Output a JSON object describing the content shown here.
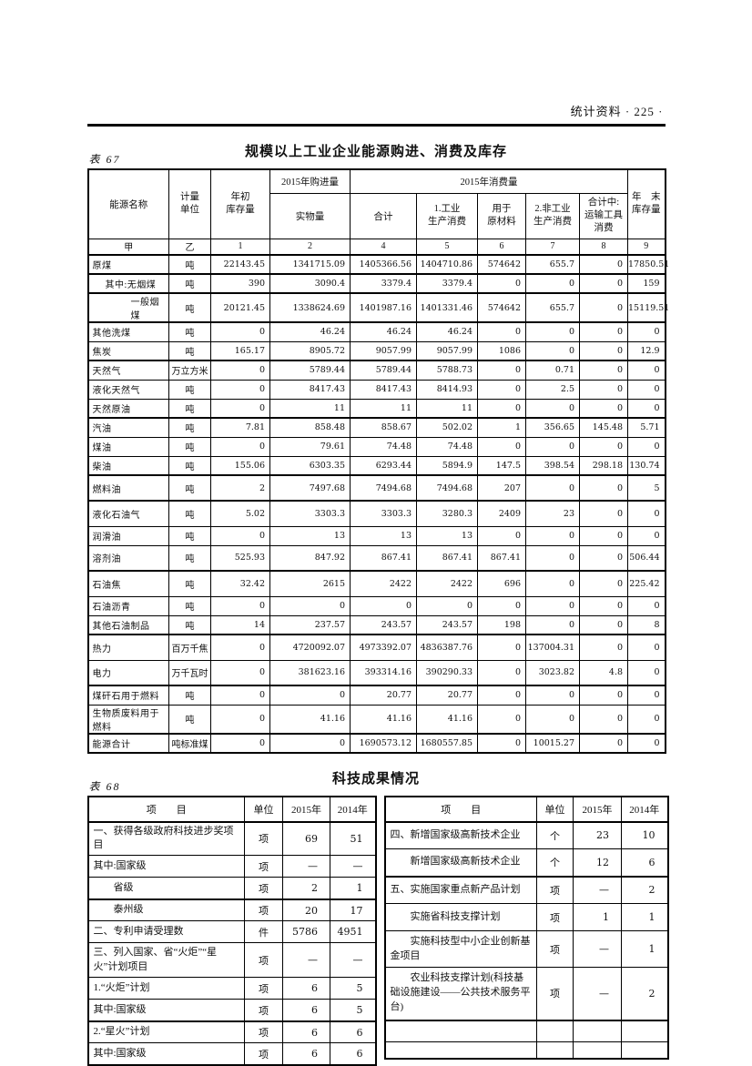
{
  "colors": {
    "ink": "#111111",
    "paper": "#ffffff"
  },
  "page": {
    "header_right": "统计资料 · 225 ·"
  },
  "table67": {
    "label": "表 67",
    "title": "规模以上工业企业能源购进、消费及库存",
    "columns": {
      "name": "能源名称",
      "unit": "计量\n单位",
      "begin_stock": "年初\n库存量",
      "purchase_group": "2015年购进量",
      "physical": "实物量",
      "consumption_group": "2015年消费量",
      "total": "合计",
      "industrial": "1.工业\n生产消费",
      "raw_material": "用于\n原材料",
      "non_industrial": "2.非工业\n生产消费",
      "transport": "合计中:\n运输工具\n消费",
      "end_stock": "年　末\n库存量"
    },
    "code_row": [
      "甲",
      "乙",
      "1",
      "2",
      "4",
      "5",
      "6",
      "7",
      "8",
      "9"
    ],
    "rows": [
      {
        "name": "原煤",
        "unit": "吨",
        "indent": 0,
        "separator_after": true,
        "tall": false,
        "values": [
          "22143.45",
          "1341715.09",
          "1405366.56",
          "1404710.86",
          "574642",
          "655.7",
          "0",
          "17850.51"
        ]
      },
      {
        "name": "其中:无烟煤",
        "unit": "吨",
        "indent": 1,
        "separator_after": true,
        "tall": false,
        "values": [
          "390",
          "3090.4",
          "3379.4",
          "3379.4",
          "0",
          "0",
          "0",
          "159"
        ]
      },
      {
        "name": "一般烟煤",
        "unit": "吨",
        "indent": 2,
        "separator_after": true,
        "tall": false,
        "values": [
          "20121.45",
          "1338624.69",
          "1401987.16",
          "1401331.46",
          "574642",
          "655.7",
          "0",
          "15119.51"
        ]
      },
      {
        "name": "其他洗煤",
        "unit": "吨",
        "indent": 0,
        "separator_after": false,
        "tall": false,
        "values": [
          "0",
          "46.24",
          "46.24",
          "46.24",
          "0",
          "0",
          "0",
          "0"
        ]
      },
      {
        "name": "焦炭",
        "unit": "吨",
        "indent": 0,
        "separator_after": true,
        "tall": false,
        "values": [
          "165.17",
          "8905.72",
          "9057.99",
          "9057.99",
          "1086",
          "0",
          "0",
          "12.9"
        ]
      },
      {
        "name": "天然气",
        "unit": "万立方米",
        "indent": 0,
        "separator_after": false,
        "tall": false,
        "values": [
          "0",
          "5789.44",
          "5789.44",
          "5788.73",
          "0",
          "0.71",
          "0",
          "0"
        ]
      },
      {
        "name": "液化天然气",
        "unit": "吨",
        "indent": 0,
        "separator_after": false,
        "tall": false,
        "values": [
          "0",
          "8417.43",
          "8417.43",
          "8414.93",
          "0",
          "2.5",
          "0",
          "0"
        ]
      },
      {
        "name": "天然原油",
        "unit": "吨",
        "indent": 0,
        "separator_after": true,
        "tall": false,
        "values": [
          "0",
          "11",
          "11",
          "11",
          "0",
          "0",
          "0",
          "0"
        ]
      },
      {
        "name": "汽油",
        "unit": "吨",
        "indent": 0,
        "separator_after": false,
        "tall": false,
        "values": [
          "7.81",
          "858.48",
          "858.67",
          "502.02",
          "1",
          "356.65",
          "145.48",
          "5.71"
        ]
      },
      {
        "name": "煤油",
        "unit": "吨",
        "indent": 0,
        "separator_after": false,
        "tall": false,
        "values": [
          "0",
          "79.61",
          "74.48",
          "74.48",
          "0",
          "0",
          "0",
          "0"
        ]
      },
      {
        "name": "柴油",
        "unit": "吨",
        "indent": 0,
        "separator_after": true,
        "tall": false,
        "values": [
          "155.06",
          "6303.35",
          "6293.44",
          "5894.9",
          "147.5",
          "398.54",
          "298.18",
          "130.74"
        ]
      },
      {
        "name": "燃料油",
        "unit": "吨",
        "indent": 0,
        "separator_after": true,
        "tall": true,
        "values": [
          "2",
          "7497.68",
          "7494.68",
          "7494.68",
          "207",
          "0",
          "0",
          "5"
        ]
      },
      {
        "name": "液化石油气",
        "unit": "吨",
        "indent": 0,
        "separator_after": false,
        "tall": true,
        "values": [
          "5.02",
          "3303.3",
          "3303.3",
          "3280.3",
          "2409",
          "23",
          "0",
          "0"
        ]
      },
      {
        "name": "润滑油",
        "unit": "吨",
        "indent": 0,
        "separator_after": false,
        "tall": false,
        "values": [
          "0",
          "13",
          "13",
          "13",
          "0",
          "0",
          "0",
          "0"
        ]
      },
      {
        "name": "溶剂油",
        "unit": "吨",
        "indent": 0,
        "separator_after": true,
        "tall": true,
        "values": [
          "525.93",
          "847.92",
          "867.41",
          "867.41",
          "867.41",
          "0",
          "0",
          "506.44"
        ]
      },
      {
        "name": "石油焦",
        "unit": "吨",
        "indent": 0,
        "separator_after": false,
        "tall": true,
        "values": [
          "32.42",
          "2615",
          "2422",
          "2422",
          "696",
          "0",
          "0",
          "225.42"
        ]
      },
      {
        "name": "石油沥青",
        "unit": "吨",
        "indent": 0,
        "separator_after": false,
        "tall": false,
        "values": [
          "0",
          "0",
          "0",
          "0",
          "0",
          "0",
          "0",
          "0"
        ]
      },
      {
        "name": "其他石油制品",
        "unit": "吨",
        "indent": 0,
        "separator_after": true,
        "tall": false,
        "values": [
          "14",
          "237.57",
          "243.57",
          "243.57",
          "198",
          "0",
          "0",
          "8"
        ]
      },
      {
        "name": "热力",
        "unit": "百万千焦",
        "indent": 0,
        "separator_after": false,
        "tall": true,
        "values": [
          "0",
          "4720092.07",
          "4973392.07",
          "4836387.76",
          "0",
          "137004.31",
          "0",
          "0"
        ]
      },
      {
        "name": "电力",
        "unit": "万千瓦时",
        "indent": 0,
        "separator_after": true,
        "tall": true,
        "values": [
          "0",
          "381623.16",
          "393314.16",
          "390290.33",
          "0",
          "3023.82",
          "4.8",
          "0"
        ]
      },
      {
        "name": "煤矸石用于燃料",
        "unit": "吨",
        "indent": 0,
        "separator_after": false,
        "tall": false,
        "values": [
          "0",
          "0",
          "20.77",
          "20.77",
          "0",
          "0",
          "0",
          "0"
        ]
      },
      {
        "name": "生物质废料用于燃料",
        "unit": "吨",
        "indent": 0,
        "separator_after": true,
        "tall": false,
        "values": [
          "0",
          "41.16",
          "41.16",
          "41.16",
          "0",
          "0",
          "0",
          "0"
        ]
      },
      {
        "name": "能源合计",
        "unit": "吨标准煤",
        "indent": 0,
        "separator_after": false,
        "tall": false,
        "values": [
          "0",
          "0",
          "1690573.12",
          "1680557.85",
          "0",
          "10015.27",
          "0",
          "0"
        ]
      }
    ]
  },
  "table68": {
    "label": "表 68",
    "title": "科技成果情况",
    "columns": {
      "item": "项　　目",
      "unit": "单位",
      "y2015": "2015年",
      "y2014": "2014年"
    },
    "left_rows": [
      {
        "item": "一、获得各级政府科技进步奖项目",
        "unit": "项",
        "y2015": "69",
        "y2014": "51",
        "indent": 0,
        "separator_after": false
      },
      {
        "item": "其中:国家级",
        "unit": "项",
        "y2015": "—",
        "y2014": "—",
        "indent": 0,
        "separator_after": false
      },
      {
        "item": "省级",
        "unit": "项",
        "y2015": "2",
        "y2014": "1",
        "indent": 1,
        "separator_after": true
      },
      {
        "item": "泰州级",
        "unit": "项",
        "y2015": "20",
        "y2014": "17",
        "indent": 1,
        "separator_after": false
      },
      {
        "item": "二、专利申请受理数",
        "unit": "件",
        "y2015": "5786",
        "y2014": "4951",
        "indent": 0,
        "separator_after": false
      },
      {
        "item": "三、列入国家、省“火炬”“星火”计划项目",
        "unit": "项",
        "y2015": "—",
        "y2014": "—",
        "indent": 0,
        "separator_after": false
      },
      {
        "item": "1.“火炬”计划",
        "unit": "项",
        "y2015": "6",
        "y2014": "5",
        "indent": 0,
        "separator_after": false
      },
      {
        "item": "其中:国家级",
        "unit": "项",
        "y2015": "6",
        "y2014": "5",
        "indent": 0,
        "separator_after": true
      },
      {
        "item": "2.“星火”计划",
        "unit": "项",
        "y2015": "6",
        "y2014": "6",
        "indent": 0,
        "separator_after": false
      },
      {
        "item": "其中:国家级",
        "unit": "项",
        "y2015": "6",
        "y2014": "6",
        "indent": 0,
        "separator_after": false
      }
    ],
    "right_rows": [
      {
        "item": "四、新增国家级高新技术企业",
        "unit": "个",
        "y2015": "23",
        "y2014": "10",
        "indent": 0,
        "separator_after": false
      },
      {
        "item": "新增国家级高新技术企业",
        "unit": "个",
        "y2015": "12",
        "y2014": "6",
        "indent": 1,
        "separator_after": true
      },
      {
        "item": "五、实施国家重点新产品计划",
        "unit": "项",
        "y2015": "—",
        "y2014": "2",
        "indent": 0,
        "separator_after": false
      },
      {
        "item": "实施省科技支撑计划",
        "unit": "项",
        "y2015": "1",
        "y2014": "1",
        "indent": 1,
        "separator_after": false
      },
      {
        "item": "实施科技型中小企业创新基金项目",
        "unit": "项",
        "y2015": "—",
        "y2014": "1",
        "indent": 1,
        "separator_after": false
      },
      {
        "item": "农业科技支撑计划(科技基础设施建设——公共技术服务平台)",
        "unit": "项",
        "y2015": "—",
        "y2014": "2",
        "indent": 1,
        "separator_after": true
      },
      {
        "item": "",
        "unit": "",
        "y2015": "",
        "y2014": "",
        "indent": 0,
        "separator_after": false
      },
      {
        "item": "",
        "unit": "",
        "y2015": "",
        "y2014": "",
        "indent": 0,
        "separator_after": false
      }
    ]
  }
}
